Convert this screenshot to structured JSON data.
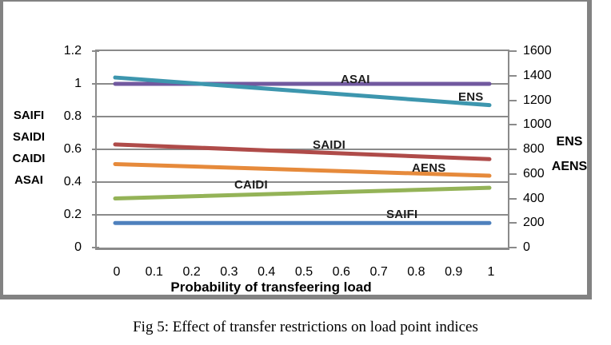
{
  "caption": "Fig 5: Effect of transfer restrictions on load point indices",
  "chart_data": {
    "type": "line",
    "title": "",
    "xlabel": "Probability of transfeering load",
    "x_range": [
      0,
      1
    ],
    "x_ticks": [
      "0",
      "0.1",
      "0.2",
      "0.3",
      "0.4",
      "0.5",
      "0.6",
      "0.7",
      "0.8",
      "0.9",
      "1"
    ],
    "grid": "horizontal",
    "legend": "inline-labels",
    "axes": {
      "left": {
        "title_lines": [
          "SAIFI",
          "SAIDI",
          "CAIDI",
          "ASAI"
        ],
        "ticks": [
          "0",
          "0.2",
          "0.4",
          "0.6",
          "0.8",
          "1",
          "1.2"
        ],
        "tick_values": [
          0,
          0.2,
          0.4,
          0.6,
          0.8,
          1.0,
          1.2
        ],
        "range": [
          0,
          1.2
        ]
      },
      "right": {
        "title_lines": [
          "ENS",
          "AENS"
        ],
        "ticks": [
          "0",
          "200",
          "400",
          "600",
          "800",
          "1000",
          "1200",
          "1400",
          "1600"
        ],
        "tick_values": [
          0,
          200,
          400,
          600,
          800,
          1000,
          1200,
          1400,
          1600
        ],
        "range": [
          0,
          1600
        ]
      }
    },
    "series": [
      {
        "name": "SAIFI",
        "axis": "left",
        "color": "#4F81BD",
        "x": [
          0,
          1
        ],
        "values": [
          0.15,
          0.15
        ]
      },
      {
        "name": "SAIDI",
        "axis": "left",
        "color": "#AF4B49",
        "x": [
          0,
          1
        ],
        "values": [
          0.63,
          0.54
        ]
      },
      {
        "name": "CAIDI",
        "axis": "left",
        "color": "#94B357",
        "x": [
          0,
          1
        ],
        "values": [
          0.3,
          0.365
        ]
      },
      {
        "name": "ASAI",
        "axis": "left",
        "color": "#71599F",
        "x": [
          0,
          1
        ],
        "values": [
          1.0,
          1.0
        ]
      },
      {
        "name": "ENS",
        "axis": "right",
        "color": "#3D96AE",
        "x": [
          0,
          1
        ],
        "values": [
          1385,
          1160
        ]
      },
      {
        "name": "AENS",
        "axis": "right",
        "color": "#E68A3B",
        "x": [
          0,
          1
        ],
        "values": [
          680,
          585
        ]
      }
    ]
  }
}
